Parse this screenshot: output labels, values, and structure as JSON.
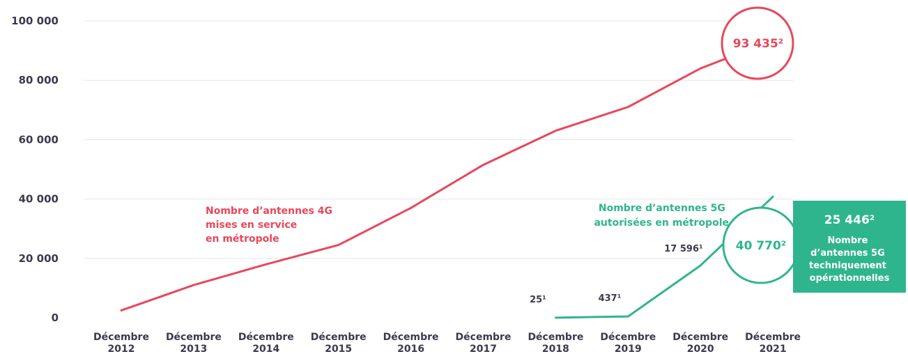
{
  "chart_data": {
    "type": "line",
    "categories": [
      "Décembre 2012",
      "Décembre 2013",
      "Décembre 2014",
      "Décembre 2015",
      "Décembre 2016",
      "Décembre 2017",
      "Décembre 2018",
      "Décembre 2019",
      "Décembre 2020",
      "Décembre 2021"
    ],
    "category_labels": [
      [
        "Décembre",
        "2012"
      ],
      [
        "Décembre",
        "2013"
      ],
      [
        "Décembre",
        "2014"
      ],
      [
        "Décembre",
        "2015"
      ],
      [
        "Décembre",
        "2016"
      ],
      [
        "Décembre",
        "2017"
      ],
      [
        "Décembre",
        "2018"
      ],
      [
        "Décembre",
        "2019"
      ],
      [
        "Décembre",
        "2020"
      ],
      [
        "Décembre",
        "2021"
      ]
    ],
    "ylim": [
      0,
      100000
    ],
    "y_ticks": [
      0,
      20000,
      40000,
      60000,
      80000,
      100000
    ],
    "y_tick_labels": [
      "0",
      "20 000",
      "40 000",
      "60 000",
      "80 000",
      "100 000"
    ],
    "grid": "horizontal",
    "series": [
      {
        "color": "#e8475a",
        "values": [
          2500,
          11000,
          18000,
          24500,
          37000,
          51500,
          63000,
          71000,
          84000,
          93435
        ]
      },
      {
        "color": "#2fb58e",
        "values": [
          null,
          null,
          null,
          null,
          null,
          null,
          25,
          437,
          17596,
          40770
        ]
      }
    ],
    "annotations": {
      "series_4g_note": [
        "Nombre d’antennes 4G",
        "mises en service",
        "en métropole"
      ],
      "series_5g_note": [
        "Nombre d’antennes 5G",
        "autorisées en métropole"
      ],
      "point_labels": {
        "p2018": "25¹",
        "p2019": "437¹",
        "p2020": "17 596¹"
      },
      "callout_4g": "93 435²",
      "callout_5g": "40 770²",
      "box_value": "25 446²",
      "box_lines": [
        "Nombre",
        "d’antennes 5G",
        "techniquement",
        "opérationnelles"
      ]
    }
  },
  "colors": {
    "red": "#e8475a",
    "green": "#2fb58e",
    "text": "#3b3a4d",
    "grid": "#e6e6ea"
  }
}
